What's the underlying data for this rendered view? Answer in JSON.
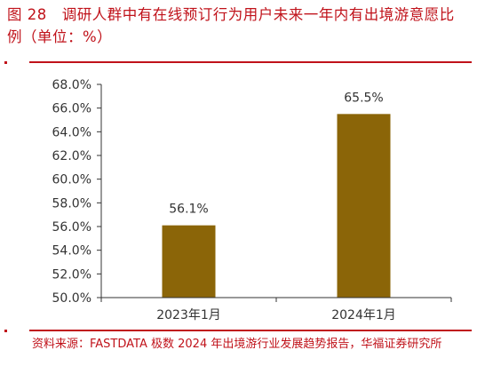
{
  "figure": {
    "title": "图 28　调研人群中有在线预订行为用户未来一年内有出境游意愿比例（单位：%）",
    "source": "资料来源：FASTDATA 极数 2024 年出境游行业发展趋势报告，华福证券研究所"
  },
  "colors": {
    "accent": "#c0121a",
    "bar": "#8b6508",
    "axis": "#333333",
    "text": "#333333"
  },
  "chart_data": {
    "type": "bar",
    "categories": [
      "2023年1月",
      "2024年1月"
    ],
    "values": [
      56.1,
      65.5
    ],
    "data_labels": [
      "56.1%",
      "65.5%"
    ],
    "ylim": [
      50.0,
      68.0
    ],
    "yticks": [
      50,
      52,
      54,
      56,
      58,
      60,
      62,
      64,
      66,
      68
    ],
    "ytick_labels": [
      "50.0%",
      "52.0%",
      "54.0%",
      "56.0%",
      "58.0%",
      "60.0%",
      "62.0%",
      "64.0%",
      "66.0%",
      "68.0%"
    ],
    "grid": false,
    "legend": false
  }
}
